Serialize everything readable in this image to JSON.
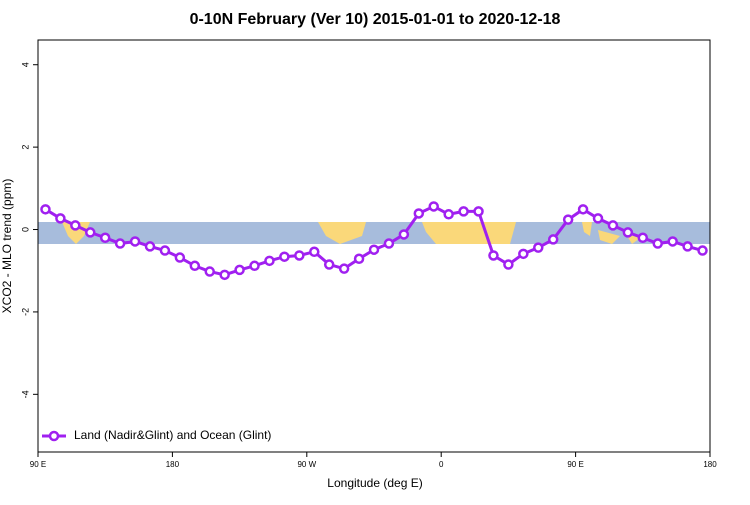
{
  "chart_data": {
    "type": "line",
    "title": "0-10N February (Ver 10)   2015-01-01 to 2020-12-18",
    "x_label": "Longitude (deg E)",
    "y_label": "XCO2 - MLO trend (ppm)",
    "x": [
      95,
      105,
      115,
      125,
      135,
      145,
      155,
      165,
      175,
      185,
      195,
      205,
      215,
      225,
      235,
      245,
      255,
      265,
      275,
      285,
      295,
      305,
      315,
      325,
      335,
      345,
      355,
      365,
      375,
      385,
      395,
      405,
      415,
      425,
      435,
      445,
      455,
      465,
      475,
      485,
      495,
      505,
      515,
      525,
      535
    ],
    "series": [
      {
        "name": "Land (Nadir&Glint) and Ocean (Glint)",
        "color": "#a020f0",
        "values": [
          0.49,
          0.27,
          0.1,
          -0.07,
          -0.2,
          -0.34,
          -0.29,
          -0.41,
          -0.51,
          -0.68,
          -0.88,
          -1.02,
          -1.1,
          -0.98,
          -0.88,
          -0.76,
          -0.66,
          -0.63,
          -0.54,
          -0.85,
          -0.95,
          -0.71,
          -0.49,
          -0.34,
          -0.12,
          0.39,
          0.56,
          0.37,
          0.44,
          0.44,
          -0.63,
          -0.85,
          -0.59,
          -0.44,
          -0.24,
          0.24,
          0.49,
          0.27,
          0.1,
          -0.07,
          -0.2,
          -0.34,
          -0.29,
          -0.41,
          -0.51
        ]
      }
    ],
    "xlim": [
      90,
      540
    ],
    "xticks": [
      {
        "value": 90,
        "label": "90 E"
      },
      180,
      {
        "value": 270,
        "label": "90 W"
      },
      {
        "value": 360,
        "label": "0"
      },
      {
        "value": 450,
        "label": "90 E"
      },
      {
        "value": 540,
        "label": "180"
      }
    ],
    "ylim": [
      -5.4,
      4.6
    ],
    "yticks": [
      -4,
      -2,
      0,
      2,
      4
    ],
    "legend": "bottom-left"
  }
}
